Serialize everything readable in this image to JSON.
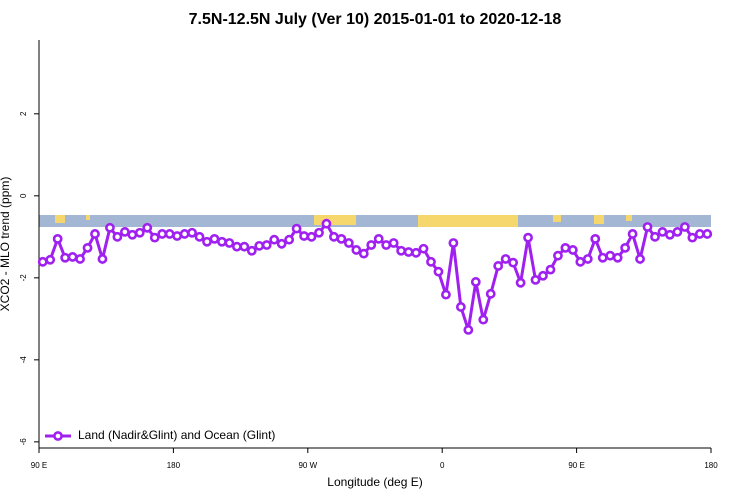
{
  "chart_data": {
    "type": "line",
    "title": "7.5N-12.5N July (Ver 10)   2015-01-01 to 2020-12-18",
    "xlabel": "Longitude (deg E)",
    "ylabel": "XCO2 - MLO trend (ppm)",
    "x": [
      92.5,
      97.5,
      102.5,
      107.5,
      112.5,
      117.5,
      122.5,
      127.5,
      132.5,
      137.5,
      142.5,
      147.5,
      152.5,
      157.5,
      162.5,
      167.5,
      172.5,
      177.5,
      182.5,
      187.5,
      192.5,
      197.5,
      202.5,
      207.5,
      212.5,
      217.5,
      222.5,
      227.5,
      232.5,
      237.5,
      242.5,
      247.5,
      252.5,
      257.5,
      262.5,
      267.5,
      272.5,
      277.5,
      282.5,
      287.5,
      292.5,
      297.5,
      302.5,
      307.5,
      312.5,
      317.5,
      322.5,
      327.5,
      332.5,
      337.5,
      342.5,
      347.5,
      352.5,
      357.5,
      362.5,
      367.5,
      372.5,
      377.5,
      382.5,
      387.5,
      392.5,
      397.5,
      402.5,
      407.5,
      412.5,
      417.5,
      422.5,
      427.5,
      432.5,
      437.5,
      442.5,
      447.5,
      452.5,
      457.5,
      462.5,
      467.5,
      472.5,
      477.5,
      482.5,
      487.5,
      492.5,
      497.5,
      502.5,
      507.5,
      512.5,
      517.5,
      522.5,
      527.5,
      532.5,
      537.5
    ],
    "series": [
      {
        "name": "Land (Nadir&Glint) and Ocean (Glint)",
        "color": "#a020f0",
        "values": [
          -1.61,
          -1.56,
          -1.05,
          -1.51,
          -1.49,
          -1.54,
          -1.27,
          -0.93,
          -1.54,
          -0.78,
          -1.0,
          -0.88,
          -0.95,
          -0.9,
          -0.78,
          -1.02,
          -0.93,
          -0.93,
          -0.98,
          -0.93,
          -0.9,
          -1.0,
          -1.12,
          -1.05,
          -1.12,
          -1.15,
          -1.24,
          -1.24,
          -1.34,
          -1.22,
          -1.2,
          -1.07,
          -1.17,
          -1.07,
          -0.8,
          -0.98,
          -1.0,
          -0.9,
          -0.68,
          -1.0,
          -1.05,
          -1.15,
          -1.32,
          -1.41,
          -1.2,
          -1.05,
          -1.2,
          -1.15,
          -1.34,
          -1.37,
          -1.39,
          -1.29,
          -1.61,
          -1.85,
          -2.41,
          -1.15,
          -2.71,
          -3.27,
          -2.1,
          -3.02,
          -2.39,
          -1.71,
          -1.54,
          -1.63,
          -2.12,
          -1.02,
          -2.05,
          -1.95,
          -1.8,
          -1.46,
          -1.27,
          -1.32,
          -1.61,
          -1.54,
          -1.05,
          -1.51,
          -1.46,
          -1.51,
          -1.27,
          -0.93,
          -1.54,
          -0.76,
          -1.0,
          -0.88,
          -0.95,
          -0.88,
          -0.76,
          -1.02,
          -0.93,
          -0.93
        ]
      }
    ],
    "xlim": [
      90,
      540
    ],
    "xticks": [
      {
        "value": 90,
        "label": "90 E"
      },
      180,
      {
        "value": 270,
        "label": "90 W"
      },
      {
        "value": 360,
        "label": "0"
      },
      {
        "value": 450,
        "label": "90 E"
      },
      {
        "value": 540,
        "label": "180"
      }
    ],
    "ylim": [
      -6.15,
      3.8
    ],
    "yticks": [
      2,
      0,
      -2,
      -4,
      -6
    ],
    "legend": "bottom-left"
  }
}
